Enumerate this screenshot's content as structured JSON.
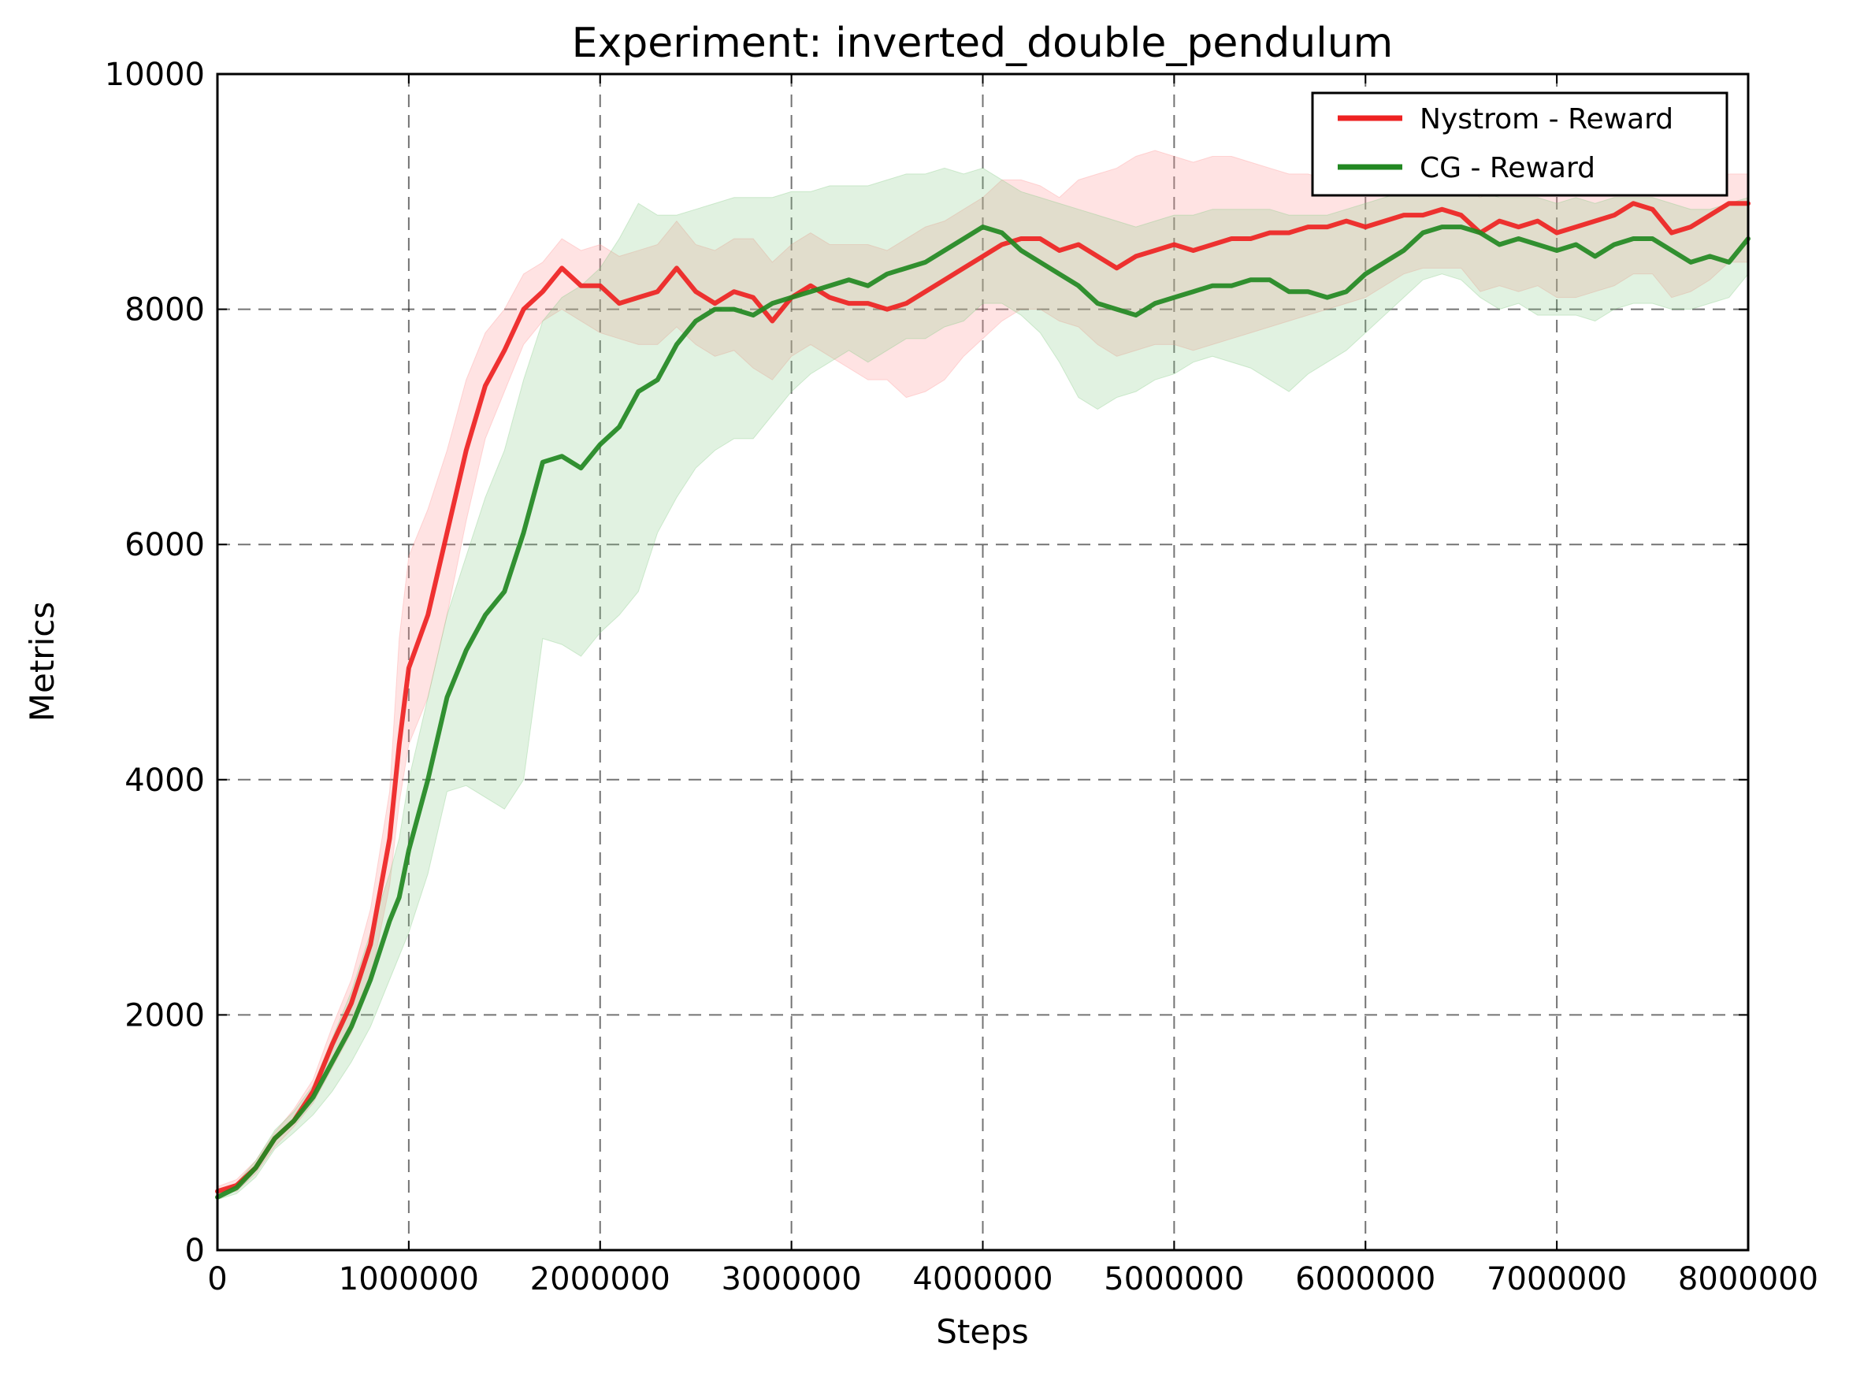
{
  "chart_data": {
    "type": "line",
    "title": "Experiment: inverted_double_pendulum",
    "xlabel": "Steps",
    "ylabel": "Metrics",
    "xlim": [
      0,
      8000000
    ],
    "ylim": [
      0,
      10000
    ],
    "xticks": [
      0,
      1000000,
      2000000,
      3000000,
      4000000,
      5000000,
      6000000,
      7000000,
      8000000
    ],
    "xtick_labels": [
      "0",
      "1000000",
      "2000000",
      "3000000",
      "4000000",
      "5000000",
      "6000000",
      "7000000",
      "8000000"
    ],
    "yticks": [
      0,
      2000,
      4000,
      6000,
      8000,
      10000
    ],
    "ytick_labels": [
      "0",
      "2000",
      "4000",
      "6000",
      "8000",
      "10000"
    ],
    "grid": true,
    "legend_position": "upper right",
    "series": [
      {
        "name": "Nystrom - Reward",
        "color": "#ee2222",
        "band_color": "#ff9999",
        "x": [
          0,
          100000,
          200000,
          300000,
          400000,
          500000,
          600000,
          700000,
          800000,
          900000,
          950000,
          1000000,
          1100000,
          1200000,
          1300000,
          1400000,
          1500000,
          1600000,
          1700000,
          1800000,
          1900000,
          2000000,
          2100000,
          2200000,
          2300000,
          2400000,
          2500000,
          2600000,
          2700000,
          2800000,
          2900000,
          3000000,
          3100000,
          3200000,
          3300000,
          3400000,
          3500000,
          3600000,
          3700000,
          3800000,
          3900000,
          4000000,
          4100000,
          4200000,
          4300000,
          4400000,
          4500000,
          4600000,
          4700000,
          4800000,
          4900000,
          5000000,
          5100000,
          5200000,
          5300000,
          5400000,
          5500000,
          5600000,
          5700000,
          5800000,
          5900000,
          6000000,
          6100000,
          6200000,
          6300000,
          6400000,
          6500000,
          6600000,
          6700000,
          6800000,
          6900000,
          7000000,
          7100000,
          7200000,
          7300000,
          7400000,
          7500000,
          7600000,
          7700000,
          7800000,
          7900000,
          8000000
        ],
        "y": [
          500,
          550,
          700,
          950,
          1100,
          1350,
          1750,
          2100,
          2600,
          3500,
          4300,
          4950,
          5400,
          6100,
          6800,
          7350,
          7650,
          8000,
          8150,
          8350,
          8200,
          8200,
          8050,
          8100,
          8150,
          8350,
          8150,
          8050,
          8150,
          8100,
          7900,
          8100,
          8200,
          8100,
          8050,
          8050,
          8000,
          8050,
          8150,
          8250,
          8350,
          8450,
          8550,
          8600,
          8600,
          8500,
          8550,
          8450,
          8350,
          8450,
          8500,
          8550,
          8500,
          8550,
          8600,
          8600,
          8650,
          8650,
          8700,
          8700,
          8750,
          8700,
          8750,
          8800,
          8800,
          8850,
          8800,
          8650,
          8750,
          8700,
          8750,
          8650,
          8700,
          8750,
          8800,
          8900,
          8850,
          8650,
          8700,
          8800,
          8900,
          8900
        ],
        "lower": [
          480,
          500,
          650,
          880,
          1050,
          1250,
          1550,
          1850,
          2300,
          3100,
          3800,
          4300,
          4700,
          5400,
          6200,
          6900,
          7300,
          7700,
          7900,
          8000,
          7900,
          7800,
          7750,
          7700,
          7700,
          7850,
          7700,
          7600,
          7650,
          7500,
          7400,
          7600,
          7700,
          7600,
          7500,
          7400,
          7400,
          7250,
          7300,
          7400,
          7600,
          7750,
          7900,
          8000,
          8000,
          7900,
          7850,
          7700,
          7600,
          7650,
          7700,
          7700,
          7650,
          7700,
          7750,
          7800,
          7850,
          7900,
          7950,
          8000,
          8050,
          8100,
          8200,
          8300,
          8350,
          8350,
          8350,
          8150,
          8200,
          8150,
          8200,
          8100,
          8100,
          8150,
          8200,
          8300,
          8300,
          8100,
          8150,
          8250,
          8400,
          8400
        ],
        "upper": [
          540,
          600,
          760,
          1000,
          1200,
          1450,
          1900,
          2300,
          2900,
          3900,
          5200,
          5900,
          6300,
          6800,
          7400,
          7800,
          8000,
          8300,
          8400,
          8600,
          8500,
          8550,
          8450,
          8500,
          8550,
          8750,
          8550,
          8500,
          8600,
          8600,
          8400,
          8550,
          8650,
          8550,
          8550,
          8550,
          8500,
          8600,
          8700,
          8750,
          8850,
          8950,
          9100,
          9100,
          9050,
          8950,
          9100,
          9150,
          9200,
          9300,
          9350,
          9300,
          9250,
          9300,
          9300,
          9250,
          9200,
          9150,
          9150,
          9100,
          9100,
          9050,
          9050,
          9050,
          9050,
          9100,
          9050,
          8950,
          9050,
          9050,
          9100,
          9000,
          9050,
          9100,
          9150,
          9200,
          9150,
          9000,
          9050,
          9100,
          9150,
          9150
        ]
      },
      {
        "name": "CG - Reward",
        "color": "#228822",
        "band_color": "#88cc88",
        "x": [
          0,
          100000,
          200000,
          300000,
          400000,
          500000,
          600000,
          700000,
          800000,
          900000,
          950000,
          1000000,
          1100000,
          1200000,
          1300000,
          1400000,
          1500000,
          1600000,
          1700000,
          1800000,
          1900000,
          2000000,
          2100000,
          2200000,
          2300000,
          2400000,
          2500000,
          2600000,
          2700000,
          2800000,
          2900000,
          3000000,
          3100000,
          3200000,
          3300000,
          3400000,
          3500000,
          3600000,
          3700000,
          3800000,
          3900000,
          4000000,
          4100000,
          4200000,
          4300000,
          4400000,
          4500000,
          4600000,
          4700000,
          4800000,
          4900000,
          5000000,
          5100000,
          5200000,
          5300000,
          5400000,
          5500000,
          5600000,
          5700000,
          5800000,
          5900000,
          6000000,
          6100000,
          6200000,
          6300000,
          6400000,
          6500000,
          6600000,
          6700000,
          6800000,
          6900000,
          7000000,
          7100000,
          7200000,
          7300000,
          7400000,
          7500000,
          7600000,
          7700000,
          7800000,
          7900000,
          8000000
        ],
        "y": [
          450,
          530,
          700,
          950,
          1100,
          1300,
          1600,
          1900,
          2300,
          2800,
          3000,
          3400,
          4000,
          4700,
          5100,
          5400,
          5600,
          6100,
          6700,
          6750,
          6650,
          6850,
          7000,
          7300,
          7400,
          7700,
          7900,
          8000,
          8000,
          7950,
          8050,
          8100,
          8150,
          8200,
          8250,
          8200,
          8300,
          8350,
          8400,
          8500,
          8600,
          8700,
          8650,
          8500,
          8400,
          8300,
          8200,
          8050,
          8000,
          7950,
          8050,
          8100,
          8150,
          8200,
          8200,
          8250,
          8250,
          8150,
          8150,
          8100,
          8150,
          8300,
          8400,
          8500,
          8650,
          8700,
          8700,
          8650,
          8550,
          8600,
          8550,
          8500,
          8550,
          8450,
          8550,
          8600,
          8600,
          8500,
          8400,
          8450,
          8400,
          8600
        ],
        "lower": [
          430,
          480,
          620,
          860,
          1000,
          1150,
          1350,
          1600,
          1900,
          2300,
          2500,
          2700,
          3200,
          3900,
          3950,
          3850,
          3750,
          4000,
          5200,
          5150,
          5050,
          5250,
          5400,
          5600,
          6100,
          6400,
          6650,
          6800,
          6900,
          6900,
          7100,
          7300,
          7450,
          7550,
          7650,
          7550,
          7650,
          7750,
          7750,
          7850,
          7900,
          8050,
          8050,
          7950,
          7800,
          7550,
          7250,
          7150,
          7250,
          7300,
          7400,
          7450,
          7550,
          7600,
          7550,
          7500,
          7400,
          7300,
          7450,
          7550,
          7650,
          7800,
          7950,
          8100,
          8250,
          8300,
          8250,
          8100,
          8000,
          8050,
          7950,
          7950,
          7950,
          7900,
          8000,
          8050,
          8050,
          8000,
          8000,
          8050,
          8100,
          8300
        ],
        "upper": [
          480,
          570,
          760,
          1020,
          1180,
          1400,
          1800,
          2200,
          2700,
          3200,
          3500,
          4000,
          4700,
          5400,
          5900,
          6400,
          6800,
          7400,
          7900,
          8100,
          8200,
          8350,
          8600,
          8900,
          8800,
          8800,
          8850,
          8900,
          8950,
          8950,
          8950,
          9000,
          9000,
          9050,
          9050,
          9050,
          9100,
          9150,
          9150,
          9200,
          9150,
          9200,
          9100,
          9000,
          8950,
          8900,
          8850,
          8800,
          8750,
          8700,
          8750,
          8800,
          8800,
          8850,
          8850,
          8850,
          8850,
          8800,
          8800,
          8800,
          8850,
          8900,
          8950,
          9000,
          9050,
          9050,
          9050,
          9000,
          8950,
          8950,
          8950,
          8900,
          8950,
          8900,
          8950,
          8950,
          8950,
          8900,
          8850,
          8850,
          8900,
          8950
        ]
      }
    ]
  }
}
